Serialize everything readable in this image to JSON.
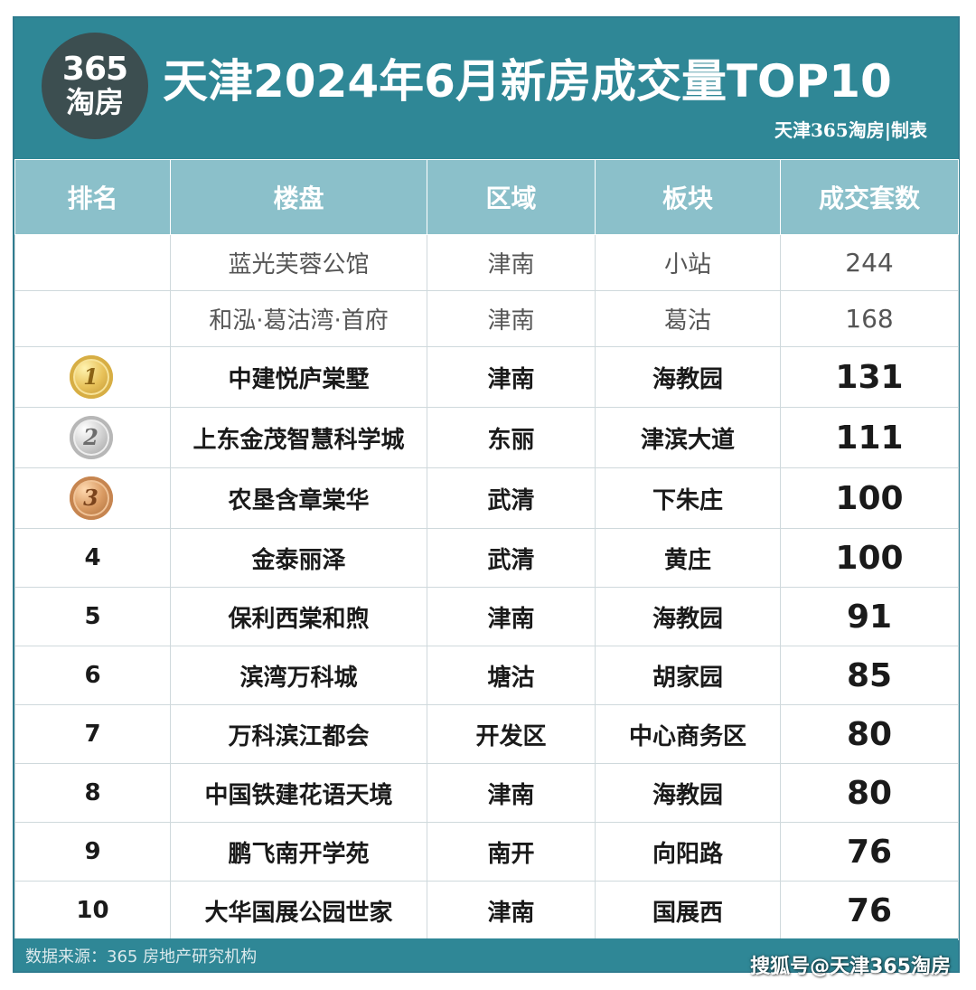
{
  "header": {
    "logo_num": "365",
    "logo_cn": "淘房",
    "title": "天津2024年6月新房成交量TOP10",
    "maker": "天津365淘房|制表"
  },
  "table": {
    "columns": [
      "排名",
      "楼盘",
      "区域",
      "板块",
      "成交套数"
    ],
    "pre_rows": [
      {
        "project": "蓝光芙蓉公馆",
        "district": "津南",
        "block": "小站",
        "count": "244"
      },
      {
        "project": "和泓·葛沽湾·首府",
        "district": "津南",
        "block": "葛沽",
        "count": "168"
      }
    ],
    "top_rows": [
      {
        "rank": "1",
        "medal": "gold",
        "project": "中建悦庐棠墅",
        "district": "津南",
        "block": "海教园",
        "count": "131"
      },
      {
        "rank": "2",
        "medal": "silver",
        "project": "上东金茂智慧科学城",
        "district": "东丽",
        "block": "津滨大道",
        "count": "111"
      },
      {
        "rank": "3",
        "medal": "bronze",
        "project": "农垦含章棠华",
        "district": "武清",
        "block": "下朱庄",
        "count": "100"
      }
    ],
    "rows": [
      {
        "rank": "4",
        "project": "金泰丽泽",
        "district": "武清",
        "block": "黄庄",
        "count": "100"
      },
      {
        "rank": "5",
        "project": "保利西棠和煦",
        "district": "津南",
        "block": "海教园",
        "count": "91"
      },
      {
        "rank": "6",
        "project": "滨湾万科城",
        "district": "塘沽",
        "block": "胡家园",
        "count": "85"
      },
      {
        "rank": "7",
        "project": "万科滨江都会",
        "district": "开发区",
        "block": "中心商务区",
        "count": "80"
      },
      {
        "rank": "8",
        "project": "中国铁建花语天境",
        "district": "津南",
        "block": "海教园",
        "count": "80"
      },
      {
        "rank": "9",
        "project": "鹏飞南开学苑",
        "district": "南开",
        "block": "向阳路",
        "count": "76"
      },
      {
        "rank": "10",
        "project": "大华国展公园世家",
        "district": "津南",
        "block": "国展西",
        "count": "76"
      }
    ]
  },
  "footer": {
    "source": "数据来源：365 房地产研究机构",
    "credit": "搜狐号@天津365淘房"
  },
  "colors": {
    "header_bg": "#2f8796",
    "column_header_bg": "#8bc0ca",
    "logo_bg": "#3c4e50"
  }
}
